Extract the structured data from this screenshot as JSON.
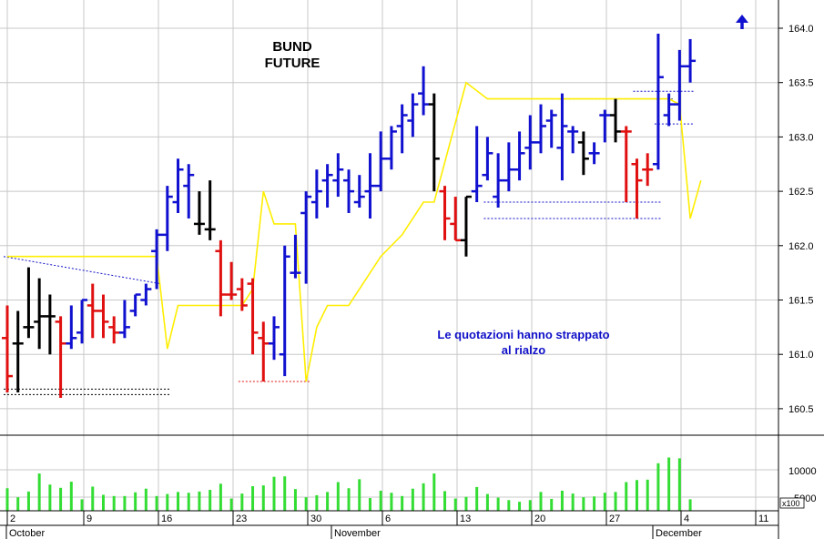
{
  "chart_data": {
    "type": "bar",
    "title": [
      "BUND",
      "FUTURE"
    ],
    "annotation": [
      "Le quotazioni hanno strappato",
      "al rialzo"
    ],
    "ylim": [
      160.2,
      164.2
    ],
    "yticks": [
      "164.0",
      "163.5",
      "163.0",
      "162.5",
      "162.0",
      "161.5",
      "161.0",
      "160.5"
    ],
    "xticks": [
      "2",
      "9",
      "16",
      "23",
      "30",
      "6",
      "13",
      "20",
      "27",
      "4",
      "11"
    ],
    "month_labels": [
      "October",
      "November",
      "December"
    ],
    "volume_ticks": [
      "10000",
      "5000"
    ],
    "volume_unit": "x100",
    "grid": true,
    "colors": {
      "up": "#1010d0",
      "down": "#e01010",
      "neutral": "#000000",
      "ma": "#ffee00",
      "volume": "#33dd33",
      "grid": "#c8c8c8",
      "arrow": "#1010d0"
    },
    "bars": [
      {
        "d": "Oct 2",
        "h": 161.45,
        "l": 160.65,
        "o": 161.15,
        "c": 160.8,
        "col": "down",
        "v": 5500
      },
      {
        "d": "Oct 3",
        "h": 161.4,
        "l": 160.65,
        "o": 161.1,
        "c": 161.1,
        "col": "neutral",
        "v": 3300
      },
      {
        "d": "Oct 4",
        "h": 161.8,
        "l": 161.15,
        "o": 161.25,
        "c": 161.25,
        "col": "neutral",
        "v": 4700
      },
      {
        "d": "Oct 5",
        "h": 161.7,
        "l": 161.05,
        "o": 161.3,
        "c": 161.35,
        "col": "neutral",
        "v": 9100
      },
      {
        "d": "Oct 6",
        "h": 161.55,
        "l": 161.0,
        "o": 161.35,
        "c": 161.35,
        "col": "neutral",
        "v": 6400
      },
      {
        "d": "Oct 7",
        "h": 161.35,
        "l": 160.6,
        "o": 161.3,
        "c": 161.1,
        "col": "down",
        "v": 5600
      },
      {
        "d": "Oct 8",
        "h": 161.45,
        "l": 161.05,
        "o": 161.1,
        "c": 161.15,
        "col": "up",
        "v": 7100
      },
      {
        "d": "Oct 9",
        "h": 161.5,
        "l": 161.1,
        "o": 161.2,
        "c": 161.5,
        "col": "up",
        "v": 2800
      },
      {
        "d": "Oct 10",
        "h": 161.65,
        "l": 161.15,
        "o": 161.45,
        "c": 161.4,
        "col": "down",
        "v": 5900
      },
      {
        "d": "Oct 11",
        "h": 161.55,
        "l": 161.15,
        "o": 161.4,
        "c": 161.3,
        "col": "down",
        "v": 3900
      },
      {
        "d": "Oct 12",
        "h": 161.35,
        "l": 161.1,
        "o": 161.25,
        "c": 161.2,
        "col": "down",
        "v": 3600
      },
      {
        "d": "Oct 13",
        "h": 161.5,
        "l": 161.15,
        "o": 161.2,
        "c": 161.25,
        "col": "up",
        "v": 3600
      },
      {
        "d": "Oct 14",
        "h": 161.55,
        "l": 161.35,
        "o": 161.4,
        "c": 161.55,
        "col": "up",
        "v": 4500
      },
      {
        "d": "Oct 15",
        "h": 161.65,
        "l": 161.45,
        "o": 161.5,
        "c": 161.6,
        "col": "up",
        "v": 5400
      },
      {
        "d": "Oct 16",
        "h": 162.15,
        "l": 161.6,
        "o": 161.95,
        "c": 162.1,
        "col": "up",
        "v": 3600
      },
      {
        "d": "Oct 17",
        "h": 162.55,
        "l": 161.95,
        "o": 162.1,
        "c": 162.45,
        "col": "up",
        "v": 4100
      },
      {
        "d": "Oct 18",
        "h": 162.8,
        "l": 162.3,
        "o": 162.4,
        "c": 162.7,
        "col": "up",
        "v": 4600
      },
      {
        "d": "Oct 19",
        "h": 162.75,
        "l": 162.25,
        "o": 162.55,
        "c": 162.65,
        "col": "up",
        "v": 4400
      },
      {
        "d": "Oct 20",
        "h": 162.5,
        "l": 162.1,
        "o": 162.2,
        "c": 162.2,
        "col": "neutral",
        "v": 4700
      },
      {
        "d": "Oct 21",
        "h": 162.6,
        "l": 162.05,
        "o": 162.15,
        "c": 162.15,
        "col": "neutral",
        "v": 5100
      },
      {
        "d": "Oct 22",
        "h": 162.05,
        "l": 161.35,
        "o": 161.95,
        "c": 161.55,
        "col": "down",
        "v": 6600
      },
      {
        "d": "Oct 23",
        "h": 161.85,
        "l": 161.5,
        "o": 161.55,
        "c": 161.55,
        "col": "down",
        "v": 3000
      },
      {
        "d": "Oct 24",
        "h": 161.7,
        "l": 161.4,
        "o": 161.6,
        "c": 161.45,
        "col": "down",
        "v": 4200
      },
      {
        "d": "Oct 25",
        "h": 161.7,
        "l": 161.0,
        "o": 161.65,
        "c": 161.2,
        "col": "down",
        "v": 6000
      },
      {
        "d": "Oct 26",
        "h": 161.3,
        "l": 160.75,
        "o": 161.15,
        "c": 161.1,
        "col": "down",
        "v": 6200
      },
      {
        "d": "Oct 27",
        "h": 161.35,
        "l": 160.95,
        "o": 161.1,
        "c": 161.25,
        "col": "up",
        "v": 8300
      },
      {
        "d": "Oct 28",
        "h": 162.0,
        "l": 160.8,
        "o": 161.0,
        "c": 161.9,
        "col": "up",
        "v": 8400
      },
      {
        "d": "Oct 29",
        "h": 162.1,
        "l": 161.7,
        "o": 161.75,
        "c": 161.75,
        "col": "up",
        "v": 5300
      },
      {
        "d": "Oct 30",
        "h": 162.5,
        "l": 161.65,
        "o": 162.3,
        "c": 162.45,
        "col": "up",
        "v": 3300
      },
      {
        "d": "Oct 31",
        "h": 162.7,
        "l": 162.25,
        "o": 162.4,
        "c": 162.5,
        "col": "up",
        "v": 3800
      },
      {
        "d": "Nov 1",
        "h": 162.75,
        "l": 162.35,
        "o": 162.6,
        "c": 162.65,
        "col": "up",
        "v": 4600
      },
      {
        "d": "Nov 2",
        "h": 162.85,
        "l": 162.45,
        "o": 162.6,
        "c": 162.7,
        "col": "up",
        "v": 7000
      },
      {
        "d": "Nov 3",
        "h": 162.7,
        "l": 162.3,
        "o": 162.6,
        "c": 162.5,
        "col": "up",
        "v": 5500
      },
      {
        "d": "Nov 4",
        "h": 162.65,
        "l": 162.35,
        "o": 162.4,
        "c": 162.45,
        "col": "up",
        "v": 7700
      },
      {
        "d": "Nov 5",
        "h": 162.85,
        "l": 162.25,
        "o": 162.5,
        "c": 162.55,
        "col": "up",
        "v": 3100
      },
      {
        "d": "Nov 6",
        "h": 163.05,
        "l": 162.5,
        "o": 162.55,
        "c": 162.8,
        "col": "up",
        "v": 4900
      },
      {
        "d": "Nov 7",
        "h": 163.1,
        "l": 162.7,
        "o": 162.8,
        "c": 163.05,
        "col": "up",
        "v": 4400
      },
      {
        "d": "Nov 8",
        "h": 163.3,
        "l": 162.85,
        "o": 163.1,
        "c": 163.2,
        "col": "up",
        "v": 3600
      },
      {
        "d": "Nov 9",
        "h": 163.4,
        "l": 163.0,
        "o": 163.15,
        "c": 163.3,
        "col": "up",
        "v": 5400
      },
      {
        "d": "Nov 10",
        "h": 163.65,
        "l": 163.2,
        "o": 163.4,
        "c": 163.3,
        "col": "up",
        "v": 6700
      },
      {
        "d": "Nov 11",
        "h": 163.4,
        "l": 162.5,
        "o": 163.3,
        "c": 162.8,
        "col": "neutral",
        "v": 9100
      },
      {
        "d": "Nov 12",
        "h": 162.55,
        "l": 162.05,
        "o": 162.5,
        "c": 162.25,
        "col": "down",
        "v": 4800
      },
      {
        "d": "Nov 13",
        "h": 162.45,
        "l": 162.05,
        "o": 162.2,
        "c": 162.05,
        "col": "down",
        "v": 3000
      },
      {
        "d": "Nov 14",
        "h": 162.45,
        "l": 161.9,
        "o": 162.05,
        "c": 162.45,
        "col": "neutral",
        "v": 3400
      },
      {
        "d": "Nov 15",
        "h": 163.1,
        "l": 162.4,
        "o": 162.5,
        "c": 162.55,
        "col": "up",
        "v": 5800
      },
      {
        "d": "Nov 16",
        "h": 163.0,
        "l": 162.6,
        "o": 162.65,
        "c": 162.85,
        "col": "up",
        "v": 4100
      },
      {
        "d": "Nov 17",
        "h": 162.85,
        "l": 162.35,
        "o": 162.45,
        "c": 162.6,
        "col": "up",
        "v": 3200
      },
      {
        "d": "Nov 18",
        "h": 162.95,
        "l": 162.5,
        "o": 162.6,
        "c": 162.7,
        "col": "up",
        "v": 2600
      },
      {
        "d": "Nov 19",
        "h": 163.05,
        "l": 162.6,
        "o": 162.7,
        "c": 162.85,
        "col": "up",
        "v": 2200
      },
      {
        "d": "Nov 20",
        "h": 163.2,
        "l": 162.7,
        "o": 162.9,
        "c": 162.95,
        "col": "up",
        "v": 2600
      },
      {
        "d": "Nov 21",
        "h": 163.3,
        "l": 162.85,
        "o": 162.95,
        "c": 163.1,
        "col": "up",
        "v": 4600
      },
      {
        "d": "Nov 22",
        "h": 163.25,
        "l": 162.9,
        "o": 163.15,
        "c": 163.2,
        "col": "up",
        "v": 2900
      },
      {
        "d": "Nov 23",
        "h": 163.4,
        "l": 162.6,
        "o": 162.9,
        "c": 163.1,
        "col": "up",
        "v": 4900
      },
      {
        "d": "Nov 24",
        "h": 163.1,
        "l": 162.85,
        "o": 163.05,
        "c": 163.05,
        "col": "up",
        "v": 4200
      },
      {
        "d": "Nov 25",
        "h": 163.05,
        "l": 162.65,
        "o": 162.95,
        "c": 162.8,
        "col": "neutral",
        "v": 3300
      },
      {
        "d": "Nov 26",
        "h": 162.95,
        "l": 162.75,
        "o": 162.85,
        "c": 162.85,
        "col": "up",
        "v": 3500
      },
      {
        "d": "Nov 27",
        "h": 163.25,
        "l": 162.95,
        "o": 163.2,
        "c": 163.2,
        "col": "up",
        "v": 4400
      },
      {
        "d": "Nov 28",
        "h": 163.35,
        "l": 162.95,
        "o": 163.2,
        "c": 163.05,
        "col": "neutral",
        "v": 4600
      },
      {
        "d": "Nov 29",
        "h": 163.1,
        "l": 162.4,
        "o": 163.05,
        "c": 163.05,
        "col": "down",
        "v": 7000
      },
      {
        "d": "Nov 30",
        "h": 162.8,
        "l": 162.25,
        "o": 162.75,
        "c": 162.6,
        "col": "down",
        "v": 7500
      },
      {
        "d": "Dec 1",
        "h": 162.85,
        "l": 162.55,
        "o": 162.7,
        "c": 162.7,
        "col": "down",
        "v": 7600
      },
      {
        "d": "Dec 2",
        "h": 163.95,
        "l": 162.7,
        "o": 162.75,
        "c": 163.55,
        "col": "up",
        "v": 11600
      },
      {
        "d": "Dec 3",
        "h": 163.4,
        "l": 163.1,
        "o": 163.2,
        "c": 163.3,
        "col": "up",
        "v": 13000
      },
      {
        "d": "Dec 4",
        "h": 163.8,
        "l": 163.15,
        "o": 163.3,
        "c": 163.65,
        "col": "up",
        "v": 12800
      },
      {
        "d": "Dec 5",
        "h": 163.9,
        "l": 163.5,
        "o": 163.65,
        "c": 163.7,
        "col": "up",
        "v": 2800
      }
    ],
    "ma_line": [
      [
        0,
        161.9
      ],
      [
        14,
        161.9
      ],
      [
        15,
        161.05
      ],
      [
        16,
        161.45
      ],
      [
        22,
        161.45
      ],
      [
        23,
        161.6
      ],
      [
        24,
        162.5
      ],
      [
        25,
        162.2
      ],
      [
        27,
        162.2
      ],
      [
        28,
        160.75
      ],
      [
        29,
        161.25
      ],
      [
        30,
        161.45
      ],
      [
        32,
        161.45
      ],
      [
        35,
        161.9
      ],
      [
        37,
        162.1
      ],
      [
        39,
        162.4
      ],
      [
        40,
        162.4
      ],
      [
        43,
        163.5
      ],
      [
        45,
        163.35
      ],
      [
        52,
        163.35
      ],
      [
        62,
        163.35
      ],
      [
        63,
        163.3
      ],
      [
        64,
        162.25
      ],
      [
        65,
        162.6
      ]
    ],
    "ref_lines": [
      {
        "x1": 0,
        "x2": 15,
        "y": 160.68,
        "color": "#000000"
      },
      {
        "x1": 0,
        "x2": 15,
        "y": 160.63,
        "color": "#000000"
      },
      {
        "x1": 0,
        "x2": 14,
        "y": 161.9,
        "y2": 161.65,
        "color": "#1010c8"
      },
      {
        "x1": 22,
        "x2": 28,
        "y": 160.75,
        "color": "#e01010"
      },
      {
        "x1": 45,
        "x2": 61,
        "y": 162.4,
        "color": "#1010c8"
      },
      {
        "x1": 45,
        "x2": 61,
        "y": 162.25,
        "color": "#1010c8"
      },
      {
        "x1": 52,
        "x2": 62,
        "y": 163.35,
        "color": "#000000"
      },
      {
        "x1": 59,
        "x2": 64,
        "y": 163.42,
        "color": "#1010c8"
      },
      {
        "x1": 61,
        "x2": 64,
        "y": 163.12,
        "color": "#1010c8"
      }
    ]
  }
}
